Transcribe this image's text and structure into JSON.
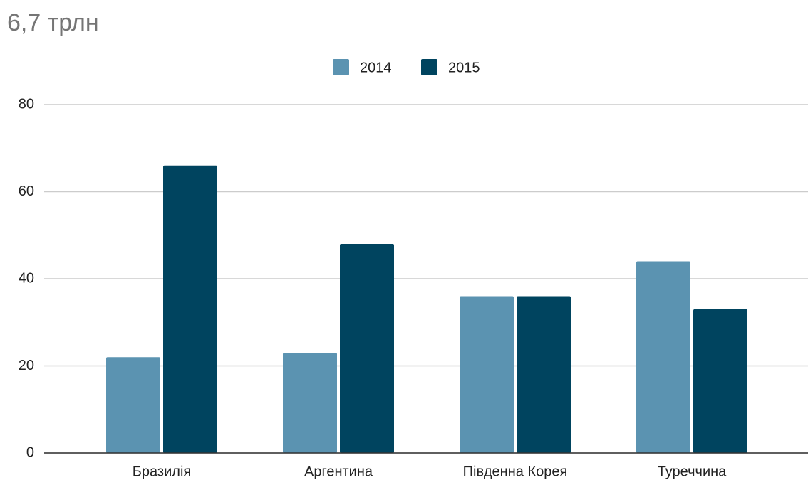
{
  "chart_data": {
    "type": "bar",
    "title": "6,7 трлн",
    "categories": [
      "Бразилія",
      "Аргентина",
      "Південна Корея",
      "Туреччина"
    ],
    "series": [
      {
        "name": "2014",
        "color": "#5b93b1",
        "values": [
          22,
          23,
          36,
          44
        ]
      },
      {
        "name": "2015",
        "color": "#00445f",
        "values": [
          66,
          48,
          36,
          33
        ]
      }
    ],
    "ylim": [
      0,
      80
    ],
    "yticks": [
      0,
      20,
      40,
      60,
      80
    ],
    "grid": true,
    "legend": "top"
  }
}
